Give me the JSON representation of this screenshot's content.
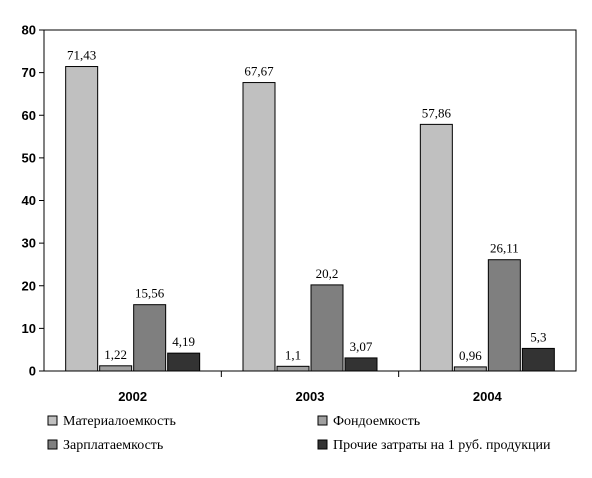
{
  "chart_data": {
    "type": "bar",
    "title": "",
    "xlabel": "",
    "ylabel": "",
    "ylim": [
      0,
      80
    ],
    "yticks": [
      0,
      10,
      20,
      30,
      40,
      50,
      60,
      70,
      80
    ],
    "categories": [
      "2002",
      "2003",
      "2004"
    ],
    "grid": false,
    "legend_position": "bottom",
    "series": [
      {
        "name": "Материалоемкость",
        "color": "#c0c0c0",
        "values": [
          71.43,
          67.67,
          57.86
        ],
        "labels": [
          "71,43",
          "67,67",
          "57,86"
        ]
      },
      {
        "name": "Фондоемкость",
        "color": "#a0a0a0",
        "values": [
          1.22,
          1.1,
          0.96
        ],
        "labels": [
          "1,22",
          "1,1",
          "0,96"
        ]
      },
      {
        "name": "Зарплатаемкость",
        "color": "#7f7f7f",
        "values": [
          15.56,
          20.2,
          26.11
        ],
        "labels": [
          "15,56",
          "20,2",
          "26,11"
        ]
      },
      {
        "name": "Прочие затраты на 1 руб. продукции",
        "color": "#333333",
        "values": [
          4.19,
          3.07,
          5.3
        ],
        "labels": [
          "4,19",
          "3,07",
          "5,3"
        ]
      }
    ]
  }
}
